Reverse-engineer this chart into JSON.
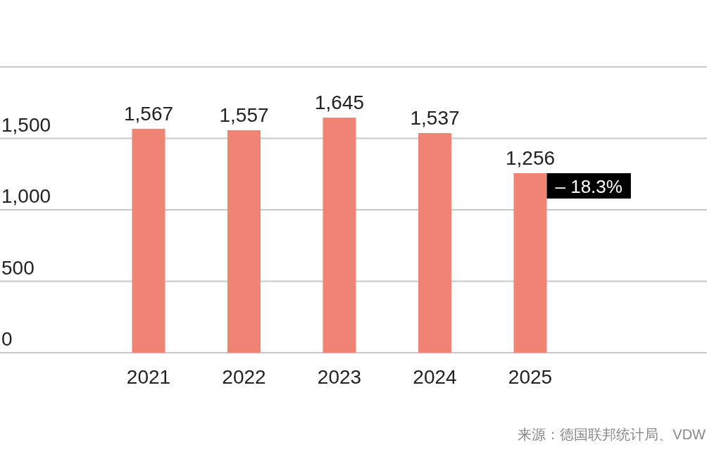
{
  "chart_data": {
    "type": "bar",
    "categories": [
      "2021",
      "2022",
      "2023",
      "2024",
      "2025"
    ],
    "values": [
      1567,
      1557,
      1645,
      1537,
      1256
    ],
    "color": "#f08474",
    "value_labels": [
      "1,567",
      "1,557",
      "1,645",
      "1,537",
      "1,256"
    ],
    "ylim": [
      0,
      2000
    ],
    "yticks": [
      0,
      {
        "value": 500,
        "label": "500"
      },
      {
        "value": 1000,
        "label": "1,000"
      },
      {
        "value": 1500,
        "label": "1,500"
      },
      {
        "value": 2000,
        "label": null
      }
    ],
    "grid": "y",
    "annotations": [
      {
        "text": "– 18.3%",
        "x": "2025",
        "y": 1256
      },
      "来源：德国联邦统计局、VDW"
    ]
  }
}
